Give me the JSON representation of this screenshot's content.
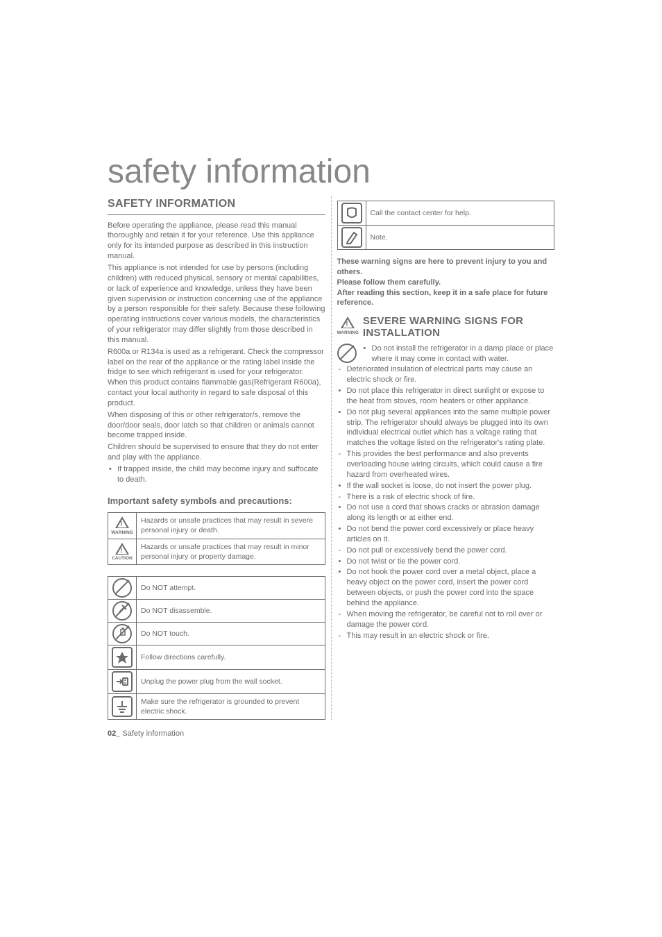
{
  "page": {
    "main_title": "safety information",
    "footer_prefix": "02_",
    "footer_text": " Safety information"
  },
  "left": {
    "section_heading": "SAFETY INFORMATION",
    "para1": "Before operating the appliance, please read this manual thoroughly and retain it for your reference. Use this appliance only for its intended purpose as described in this instruction manual.",
    "para2": "This appliance is not intended for use by persons (including children) with reduced physical, sensory or mental capabilities, or lack of experience and knowledge, unless they have been given supervision or instruction concerning use of the appliance by a person responsible for their safety. Because these following operating instructions cover various models, the characteristics of your refrigerator may differ slightly from those described in this manual.",
    "para3": "R600a or R134a is used as a refrigerant. Check the compressor label on the rear of the appliance or the rating label inside the fridge to see which refrigerant is used for your refrigerator. When this product contains flammable gas(Refrigerant R600a), contact your local authority in regard to safe disposal of this product.",
    "para4": "When disposing of this or other refrigerator/s, remove the door/door seals, door latch so that children or animals cannot become trapped inside.",
    "para5": "Children should be supervised to ensure that they do not enter and play with the appliance.",
    "bullet1": "If trapped inside, the child may become injury and suffocate to death.",
    "sub_heading": "Important safety symbols and precautions:",
    "warn_table": {
      "warning_label": "WARNING",
      "warning_text": "Hazards or unsafe practices that may result in severe personal injury or death.",
      "caution_label": "CAUTION",
      "caution_text": "Hazards or unsafe practices that may result in minor personal injury or property damage."
    },
    "icon_table": {
      "r1": "Do NOT attempt.",
      "r2": "Do NOT disassemble.",
      "r3": "Do NOT touch.",
      "r4": "Follow directions carefully.",
      "r5": "Unplug the power plug from the wall socket.",
      "r6": "Make sure the refrigerator is grounded to prevent electric shock."
    }
  },
  "right": {
    "top_table": {
      "r1": "Call the contact center for help.",
      "r2": "Note."
    },
    "bold_block": "These warning signs are here to prevent injury to you and others.\nPlease follow them carefully.\nAfter reading this section, keep it in a safe place for future reference.",
    "install_heading_small": "WARNING",
    "install_heading": "SEVERE WARNING SIGNS FOR INSTALLATION",
    "first_bullet": "Do not install the refrigerator in a damp place or place where it may come in contact with water.",
    "items": [
      {
        "type": "dash",
        "text": "Deteriorated insulation of electrical parts may cause an electric shock or fire."
      },
      {
        "type": "bullet",
        "text": "Do not place this refrigerator in direct sunlight or expose to the heat from stoves, room heaters or other appliance."
      },
      {
        "type": "bullet",
        "text": "Do not plug several appliances into the same multiple power strip. The refrigerator should always be plugged into its own individual electrical outlet which has a voltage rating that matches the voltage listed on the refrigerator's rating plate."
      },
      {
        "type": "dash",
        "text": "This provides the best performance and also prevents overloading house wiring circuits, which could cause a fire hazard from overheated wires."
      },
      {
        "type": "bullet",
        "text": "If the wall socket is loose, do not insert the power plug."
      },
      {
        "type": "dash",
        "text": "There is a risk of electric shock of fire."
      },
      {
        "type": "bullet",
        "text": "Do not use a cord that shows cracks or abrasion damage along its length or at either end."
      },
      {
        "type": "bullet",
        "text": "Do not bend the power cord excessively or place heavy articles on it."
      },
      {
        "type": "dash",
        "text": "Do not pull or excessively bend the power cord."
      },
      {
        "type": "bullet",
        "text": "Do not twist or tie the power cord."
      },
      {
        "type": "bullet",
        "text": "Do not hook the power cord over a metal object, place a heavy object on the power cord, insert the power cord between objects, or push the power cord into the space behind the appliance."
      },
      {
        "type": "dash",
        "text": "When moving the refrigerator, be careful not to roll over or damage the power cord."
      },
      {
        "type": "dash",
        "text": "This may result in an electric shock or fire."
      }
    ]
  }
}
